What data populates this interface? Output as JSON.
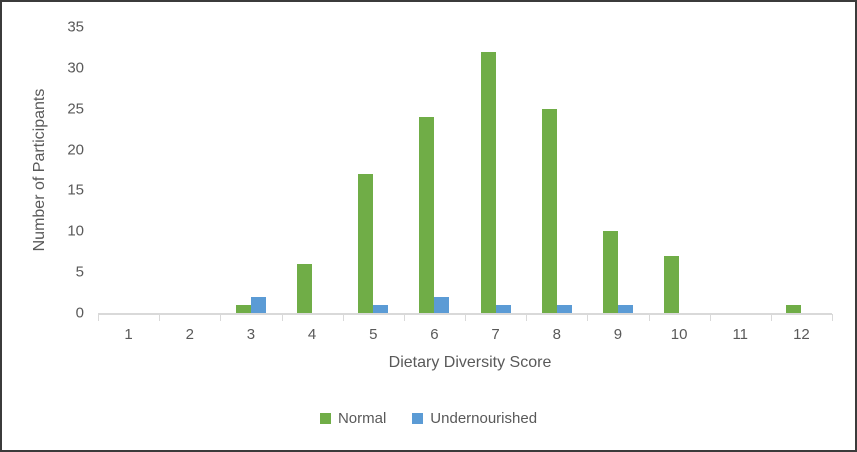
{
  "chart_data": {
    "type": "bar",
    "title": "",
    "categories": [
      "1",
      "2",
      "3",
      "4",
      "5",
      "6",
      "7",
      "8",
      "9",
      "10",
      "11",
      "12"
    ],
    "series": [
      {
        "name": "Normal",
        "color": "#70AD47",
        "values": [
          0,
          0,
          1,
          6,
          17,
          24,
          32,
          25,
          10,
          7,
          0,
          1
        ]
      },
      {
        "name": "Undernourished",
        "color": "#5B9BD5",
        "values": [
          0,
          0,
          2,
          0,
          1,
          2,
          1,
          1,
          1,
          0,
          0,
          0
        ]
      }
    ],
    "xlabel": "Dietary Diversity Score",
    "ylabel": "Number of Participants",
    "ylim": [
      0,
      35
    ],
    "ytick_step": 5,
    "ytick_labels": [
      "0",
      "5",
      "10",
      "15",
      "20",
      "25",
      "30",
      "35"
    ],
    "grid": false,
    "legend_position": "bottom"
  },
  "styles": {
    "axis_line_color": "#d9d9d9",
    "text_color": "#595959",
    "frame_border_color": "#3b3b3b",
    "background": "#ffffff"
  }
}
